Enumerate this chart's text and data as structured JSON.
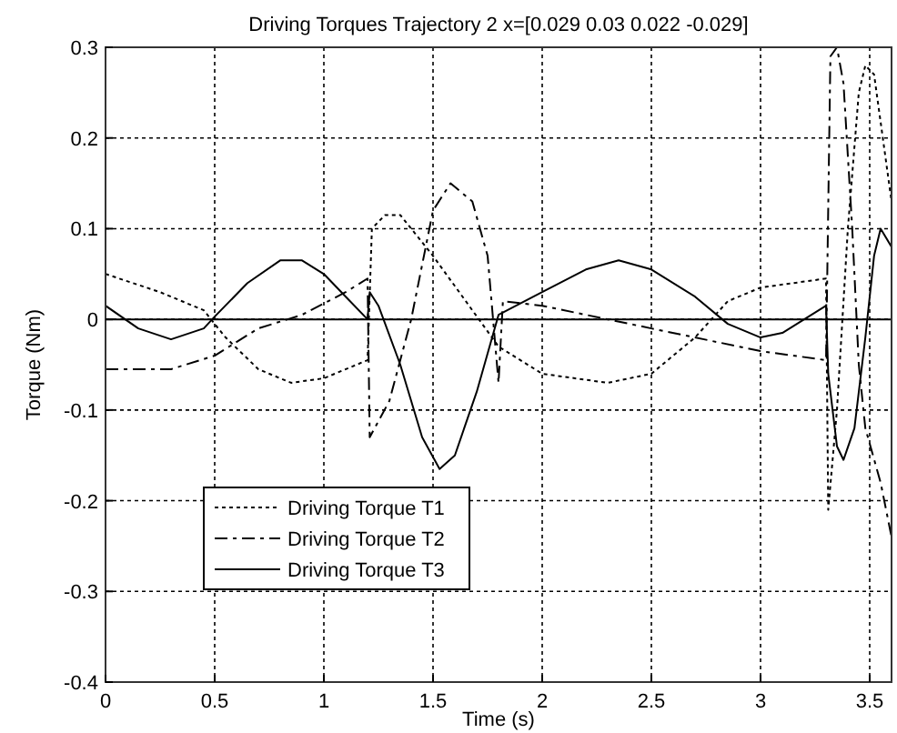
{
  "chart_data": {
    "type": "line",
    "title": "Driving Torques Trajectory 2 x=[0.029 0.03 0.022 -0.029]",
    "xlabel": "Time (s)",
    "ylabel": "Torque (Nm)",
    "xlim": [
      0,
      3.6
    ],
    "xticks": [
      0,
      0.5,
      1,
      1.5,
      2,
      2.5,
      3,
      3.5
    ],
    "ylim": [
      -0.4,
      0.3
    ],
    "yticks": [
      -0.4,
      -0.3,
      -0.2,
      -0.1,
      0,
      0.1,
      0.2,
      0.3
    ],
    "grid": true,
    "legend": "bottom left",
    "ref_lines": [
      {
        "axis": "y",
        "value": 0,
        "color": "#000000",
        "line_style": "solid"
      }
    ],
    "series": [
      {
        "name": "Driving Torque T1",
        "color": "#000000",
        "line_style": "dotted",
        "x": [
          0,
          0.25,
          0.45,
          0.55,
          0.7,
          0.85,
          1.0,
          1.15,
          1.2,
          1.22,
          1.28,
          1.35,
          1.5,
          1.65,
          1.8,
          2.0,
          2.3,
          2.5,
          2.7,
          2.85,
          3.0,
          3.3,
          3.31,
          3.35,
          3.4,
          3.45,
          3.48,
          3.52,
          3.56,
          3.6
        ],
        "values": [
          0.05,
          0.03,
          0.01,
          -0.02,
          -0.055,
          -0.07,
          -0.065,
          -0.05,
          -0.045,
          0.1,
          0.115,
          0.115,
          0.07,
          0.02,
          -0.03,
          -0.06,
          -0.07,
          -0.06,
          -0.02,
          0.02,
          0.035,
          0.045,
          -0.21,
          -0.1,
          0.1,
          0.25,
          0.28,
          0.27,
          0.2,
          0.13
        ]
      },
      {
        "name": "Driving Torque T2",
        "color": "#000000",
        "line_style": "dashed",
        "x": [
          0,
          0.3,
          0.5,
          0.7,
          0.9,
          1.1,
          1.2,
          1.21,
          1.3,
          1.4,
          1.5,
          1.58,
          1.68,
          1.75,
          1.8,
          1.82,
          2.0,
          2.5,
          2.8,
          3.0,
          3.3,
          3.32,
          3.35,
          3.38,
          3.42,
          3.45,
          3.48,
          3.55,
          3.6
        ],
        "values": [
          -0.055,
          -0.055,
          -0.04,
          -0.01,
          0.005,
          0.03,
          0.045,
          -0.13,
          -0.09,
          0.0,
          0.12,
          0.15,
          0.13,
          0.07,
          -0.07,
          0.02,
          0.015,
          -0.01,
          -0.025,
          -0.035,
          -0.045,
          0.29,
          0.3,
          0.26,
          0.1,
          -0.05,
          -0.12,
          -0.18,
          -0.24
        ]
      },
      {
        "name": "Driving Torque T3",
        "color": "#000000",
        "line_style": "solid",
        "x": [
          0,
          0.15,
          0.3,
          0.45,
          0.5,
          0.65,
          0.8,
          0.9,
          1.0,
          1.1,
          1.2,
          1.21,
          1.25,
          1.35,
          1.45,
          1.53,
          1.6,
          1.7,
          1.8,
          2.0,
          2.2,
          2.35,
          2.5,
          2.7,
          2.85,
          3.0,
          3.1,
          3.3,
          3.31,
          3.35,
          3.38,
          3.43,
          3.48,
          3.52,
          3.55,
          3.6
        ],
        "values": [
          0.015,
          -0.01,
          -0.022,
          -0.01,
          0.003,
          0.04,
          0.065,
          0.065,
          0.05,
          0.025,
          0.0,
          0.03,
          0.015,
          -0.05,
          -0.13,
          -0.165,
          -0.15,
          -0.08,
          0.005,
          0.03,
          0.055,
          0.065,
          0.055,
          0.025,
          -0.005,
          -0.02,
          -0.015,
          0.015,
          -0.06,
          -0.14,
          -0.155,
          -0.12,
          -0.02,
          0.07,
          0.1,
          0.08
        ]
      }
    ]
  }
}
